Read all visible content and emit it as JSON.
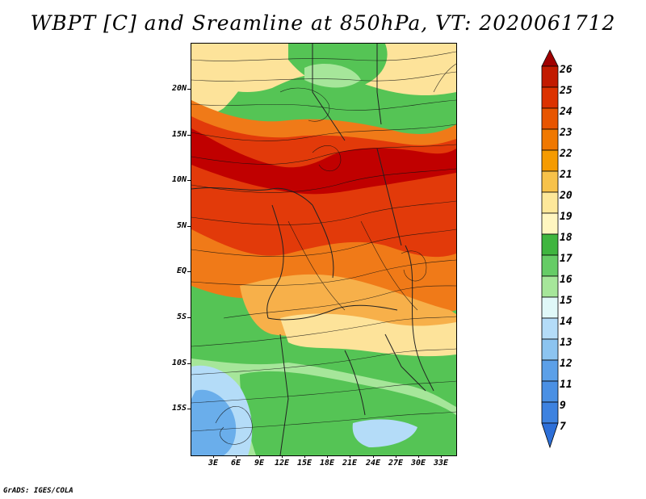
{
  "title": "WBPT [C] and Sreamline at 850hPa, VT: 2020061712",
  "footer": "GrADS: IGES/COLA",
  "latitude_labels": [
    "20N",
    "15N",
    "10N",
    "5N",
    "EQ",
    "5S",
    "10S",
    "15S"
  ],
  "longitude_labels": [
    "3E",
    "6E",
    "9E",
    "12E",
    "15E",
    "18E",
    "21E",
    "24E",
    "27E",
    "30E",
    "33E"
  ],
  "colorbar": {
    "labels": [
      "26",
      "25",
      "24",
      "23",
      "22",
      "21",
      "20",
      "19",
      "18",
      "17",
      "16",
      "15",
      "14",
      "13",
      "12",
      "11",
      "9",
      "7"
    ],
    "colors": [
      "#a00000",
      "#c21a00",
      "#dc3200",
      "#e85500",
      "#f07800",
      "#f59b00",
      "#f7c24a",
      "#fde89a",
      "#fff6c0",
      "#3fb53f",
      "#66cc66",
      "#a6e69a",
      "#e0f8f8",
      "#b4dcf8",
      "#8cc4f0",
      "#5ca0e8",
      "#3d82e0",
      "#2d6fd8"
    ]
  },
  "field_colors": {
    "dark_red": "#c00000",
    "red": "#e23a0a",
    "orange": "#f07a18",
    "light_orange": "#f7b04a",
    "yellow": "#fde39a",
    "pale_green": "#a6e69a",
    "green": "#55c455",
    "dark_green": "#33aa33",
    "light_blue": "#b4dcf8",
    "blue": "#6aaeeb"
  }
}
